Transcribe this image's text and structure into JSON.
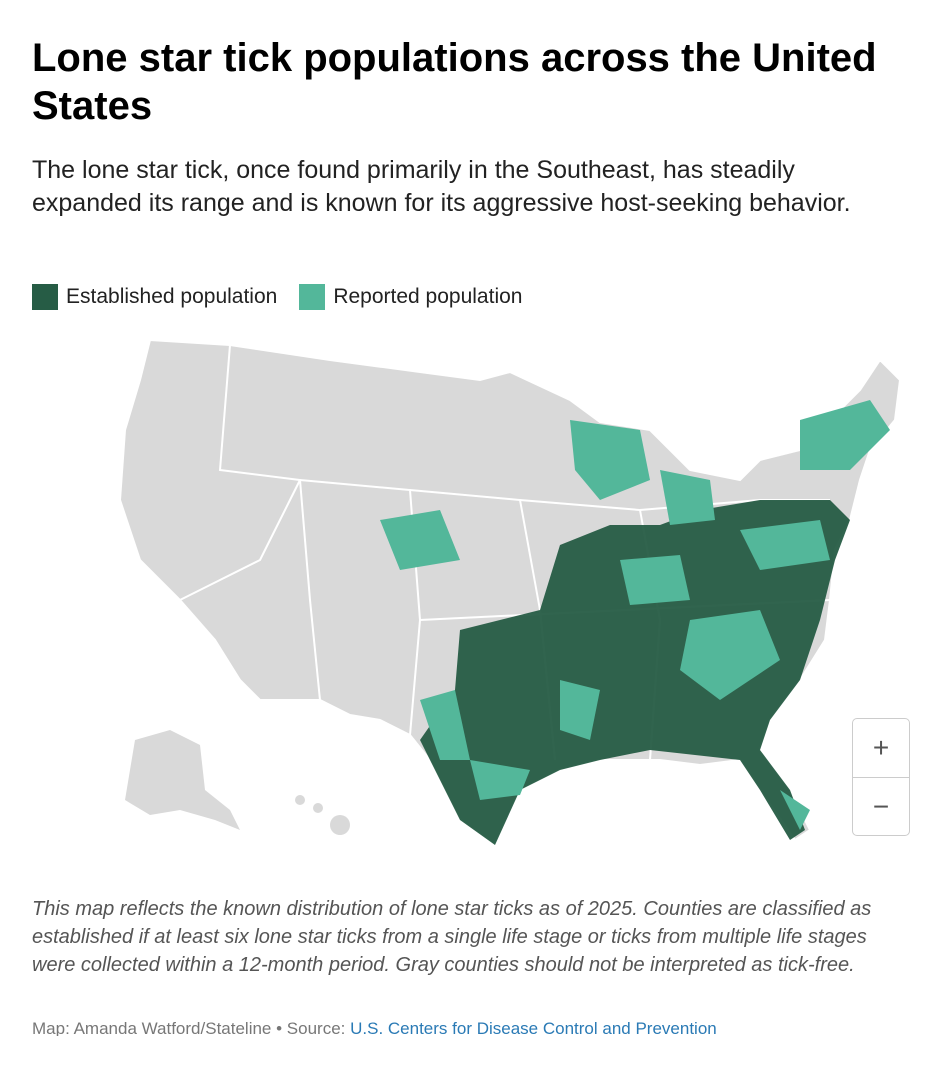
{
  "header": {
    "title": "Lone star tick populations across the United States",
    "subtitle": "The lone star tick, once found primarily in the Southeast, has steadily expanded its range and is known for its aggressive host-seeking behavior."
  },
  "legend": [
    {
      "label": "Established population",
      "color": "#265c45"
    },
    {
      "label": "Reported population",
      "color": "#53b79a"
    }
  ],
  "controls": {
    "zoom_in": "+",
    "zoom_out": "−"
  },
  "footer": {
    "note": "This map reflects the known distribution of lone star ticks as of 2025. Counties are classified as established if at least six lone star ticks from a single life stage or ticks from multiple life stages were collected within a 12-month period. Gray counties should not be interpreted as tick-free.",
    "credit": "Map: Amanda Watford/Stateline • Source: ",
    "source": "U.S. Centers for Disease Control and Prevention"
  }
}
